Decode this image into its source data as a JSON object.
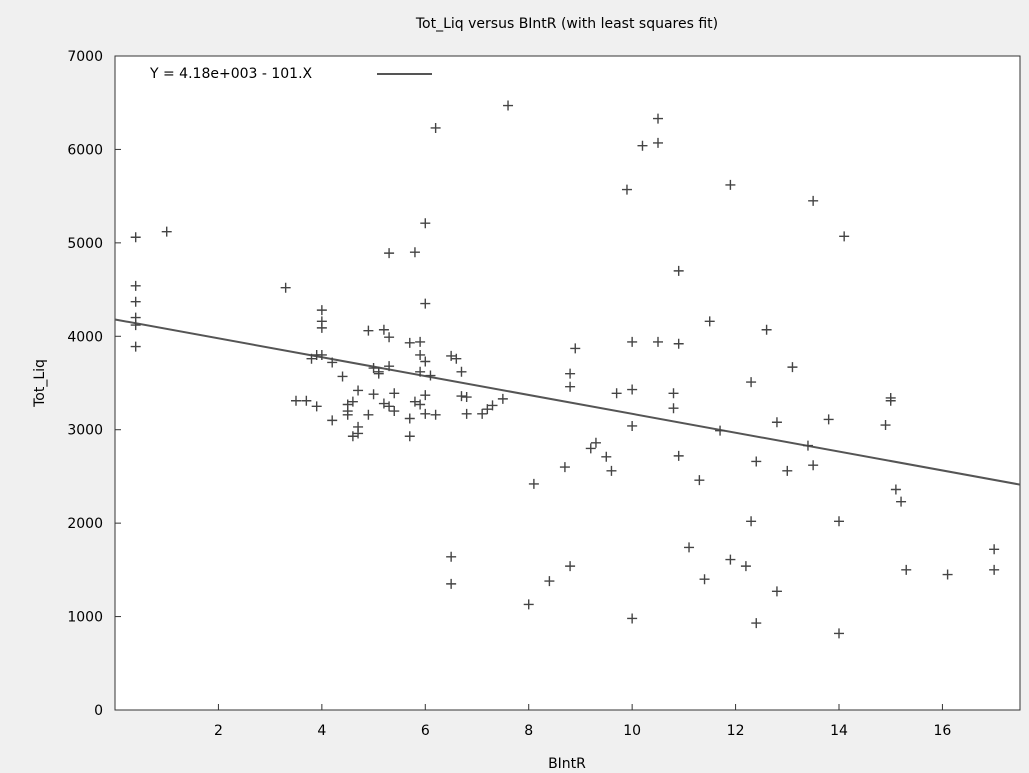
{
  "chart_data": {
    "type": "scatter",
    "title": "Tot_Liq versus BIntR (with least squares fit)",
    "xlabel": "BIntR",
    "ylabel": "Tot_Liq",
    "xlim": [
      0,
      17.5
    ],
    "ylim": [
      0,
      7000
    ],
    "xticks": [
      2,
      4,
      6,
      8,
      10,
      12,
      14,
      16
    ],
    "yticks": [
      0,
      1000,
      2000,
      3000,
      4000,
      5000,
      6000,
      7000
    ],
    "grid": false,
    "legend_position": "top-left",
    "fit": {
      "label": "Y = 4.18e+003 - 101.X",
      "intercept": 4180,
      "slope": -101
    },
    "marker": "+",
    "colors": {
      "marker": "#444444",
      "fit_line": "#555555"
    },
    "points": [
      [
        0.4,
        5060
      ],
      [
        0.4,
        4540
      ],
      [
        0.4,
        4370
      ],
      [
        0.4,
        4200
      ],
      [
        0.4,
        4120
      ],
      [
        0.4,
        3890
      ],
      [
        1.0,
        5120
      ],
      [
        3.3,
        4520
      ],
      [
        3.5,
        3310
      ],
      [
        3.7,
        3310
      ],
      [
        3.8,
        3760
      ],
      [
        3.9,
        3800
      ],
      [
        3.9,
        3250
      ],
      [
        4.0,
        4280
      ],
      [
        4.0,
        4160
      ],
      [
        4.0,
        4090
      ],
      [
        4.0,
        3800
      ],
      [
        4.2,
        3720
      ],
      [
        4.2,
        3100
      ],
      [
        4.4,
        3570
      ],
      [
        4.5,
        3270
      ],
      [
        4.5,
        3200
      ],
      [
        4.5,
        3160
      ],
      [
        4.6,
        3300
      ],
      [
        4.6,
        2930
      ],
      [
        4.7,
        3420
      ],
      [
        4.7,
        3030
      ],
      [
        4.7,
        2960
      ],
      [
        4.9,
        3160
      ],
      [
        4.9,
        4060
      ],
      [
        5.0,
        3660
      ],
      [
        5.0,
        3380
      ],
      [
        5.1,
        3620
      ],
      [
        5.1,
        3600
      ],
      [
        5.2,
        4070
      ],
      [
        5.2,
        3280
      ],
      [
        5.3,
        3990
      ],
      [
        5.3,
        3680
      ],
      [
        5.3,
        4890
      ],
      [
        5.3,
        3250
      ],
      [
        5.4,
        3390
      ],
      [
        5.4,
        3200
      ],
      [
        5.7,
        3930
      ],
      [
        5.7,
        3120
      ],
      [
        5.7,
        2930
      ],
      [
        5.8,
        4900
      ],
      [
        5.8,
        3300
      ],
      [
        5.9,
        3940
      ],
      [
        5.9,
        3800
      ],
      [
        5.9,
        3620
      ],
      [
        5.9,
        3270
      ],
      [
        6.0,
        5210
      ],
      [
        6.0,
        4350
      ],
      [
        6.0,
        3730
      ],
      [
        6.0,
        3370
      ],
      [
        6.0,
        3170
      ],
      [
        6.1,
        3580
      ],
      [
        6.2,
        3160
      ],
      [
        6.2,
        6230
      ],
      [
        6.5,
        3790
      ],
      [
        6.5,
        1640
      ],
      [
        6.5,
        1350
      ],
      [
        6.6,
        3760
      ],
      [
        6.7,
        3620
      ],
      [
        6.7,
        3360
      ],
      [
        6.8,
        3350
      ],
      [
        6.8,
        3170
      ],
      [
        7.1,
        3170
      ],
      [
        7.2,
        3220
      ],
      [
        7.3,
        3260
      ],
      [
        7.5,
        3330
      ],
      [
        7.6,
        6470
      ],
      [
        8.0,
        1130
      ],
      [
        8.1,
        2420
      ],
      [
        8.4,
        1380
      ],
      [
        8.7,
        2600
      ],
      [
        8.8,
        1540
      ],
      [
        8.8,
        3600
      ],
      [
        8.8,
        3460
      ],
      [
        8.9,
        3870
      ],
      [
        9.2,
        2800
      ],
      [
        9.3,
        2860
      ],
      [
        9.5,
        2710
      ],
      [
        9.6,
        2560
      ],
      [
        9.7,
        3390
      ],
      [
        9.9,
        5570
      ],
      [
        10.0,
        3430
      ],
      [
        10.0,
        3040
      ],
      [
        10.0,
        980
      ],
      [
        10.0,
        3940
      ],
      [
        10.2,
        6040
      ],
      [
        10.5,
        6330
      ],
      [
        10.5,
        6070
      ],
      [
        10.5,
        3940
      ],
      [
        10.8,
        3390
      ],
      [
        10.8,
        3230
      ],
      [
        10.9,
        3920
      ],
      [
        10.9,
        4700
      ],
      [
        10.9,
        2720
      ],
      [
        11.1,
        1740
      ],
      [
        11.3,
        2460
      ],
      [
        11.4,
        1400
      ],
      [
        11.5,
        4160
      ],
      [
        11.7,
        2990
      ],
      [
        11.9,
        5620
      ],
      [
        11.9,
        1610
      ],
      [
        12.2,
        1540
      ],
      [
        12.3,
        3510
      ],
      [
        12.3,
        2020
      ],
      [
        12.4,
        2660
      ],
      [
        12.4,
        930
      ],
      [
        12.6,
        4070
      ],
      [
        12.8,
        1270
      ],
      [
        12.8,
        3080
      ],
      [
        13.0,
        2560
      ],
      [
        13.1,
        3670
      ],
      [
        13.4,
        2830
      ],
      [
        13.5,
        5450
      ],
      [
        13.5,
        2620
      ],
      [
        13.8,
        3110
      ],
      [
        14.0,
        2020
      ],
      [
        14.0,
        820
      ],
      [
        14.1,
        5070
      ],
      [
        14.9,
        3050
      ],
      [
        15.0,
        3340
      ],
      [
        15.0,
        3310
      ],
      [
        15.1,
        2360
      ],
      [
        15.2,
        2230
      ],
      [
        15.3,
        1500
      ],
      [
        16.1,
        1450
      ],
      [
        17.0,
        1720
      ],
      [
        17.0,
        1500
      ]
    ]
  }
}
